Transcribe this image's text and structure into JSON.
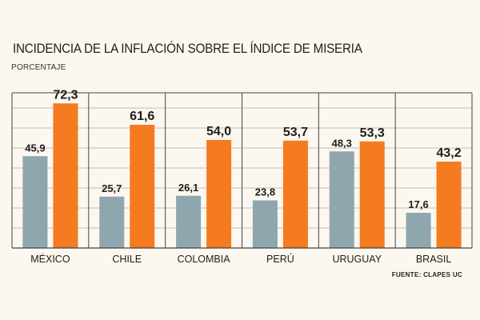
{
  "title": "INCIDENCIA DE LA INFLACIÓN SOBRE EL ÍNDICE DE MISERIA",
  "subtitle": "PORCENTAJE",
  "source": "FUENTE: CLAPES UC",
  "colors": {
    "series_a": "#8fa6ae",
    "series_b": "#f47b20",
    "grid": "#bfbfbf",
    "axis": "#444444"
  },
  "chart_data": {
    "type": "bar",
    "title": "INCIDENCIA DE LA INFLACIÓN SOBRE EL ÍNDICE DE MISERIA",
    "ylabel": "PORCENTAJE",
    "categories": [
      "MÉXICO",
      "CHILE",
      "COLOMBIA",
      "PERÚ",
      "URUGUAY",
      "BRASIL"
    ],
    "series": [
      {
        "values": [
          45.9,
          25.7,
          26.1,
          23.8,
          48.3,
          17.6
        ],
        "labels": [
          "45,9",
          "25,7",
          "26,1",
          "23,8",
          "48,3",
          "17,6"
        ]
      },
      {
        "values": [
          72.3,
          61.6,
          54.0,
          53.7,
          53.3,
          43.2
        ],
        "labels": [
          "72,3",
          "61,6",
          "54,0",
          "53,7",
          "53,3",
          "43,2"
        ]
      }
    ],
    "ylim": [
      0,
      80
    ],
    "grid": true
  }
}
